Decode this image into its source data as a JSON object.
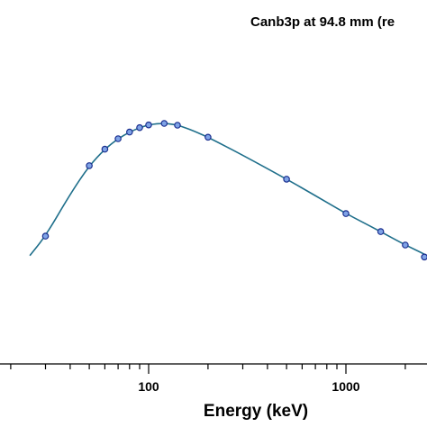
{
  "chart_data": {
    "type": "scatter",
    "title": "Canb3p at 94.8 mm (re",
    "xlabel": "Energy (keV)",
    "ylabel": "",
    "x_scale": "log",
    "xlim": [
      10,
      3000
    ],
    "x_ticks": [
      {
        "value": 100,
        "label": "100"
      },
      {
        "value": 1000,
        "label": "1000"
      }
    ],
    "grid": false,
    "legend": "none",
    "colors": {
      "curve": "#1f6f8b",
      "marker_fill": "#7fa3e6",
      "marker_stroke": "#1b2f8f",
      "axis": "#000000"
    },
    "series": [
      {
        "kind": "fit-curve",
        "x": [
          25,
          30,
          40,
          50,
          60,
          70,
          80,
          90,
          100,
          110,
          120,
          130,
          140,
          150,
          170,
          200,
          300,
          500,
          700,
          1000,
          1500,
          2000,
          2500,
          3000
        ],
        "y": [
          0.365,
          0.43,
          0.57,
          0.665,
          0.72,
          0.755,
          0.777,
          0.792,
          0.801,
          0.805,
          0.806,
          0.804,
          0.8,
          0.794,
          0.78,
          0.76,
          0.7,
          0.62,
          0.565,
          0.505,
          0.445,
          0.4,
          0.37,
          0.34
        ]
      },
      {
        "kind": "measured",
        "x": [
          30,
          50,
          60,
          70,
          80,
          90,
          100,
          120,
          140,
          200,
          500,
          1000,
          1500,
          2000,
          2500
        ],
        "y": [
          0.43,
          0.665,
          0.72,
          0.755,
          0.777,
          0.792,
          0.801,
          0.806,
          0.8,
          0.76,
          0.62,
          0.505,
          0.445,
          0.4,
          0.36
        ]
      }
    ]
  }
}
